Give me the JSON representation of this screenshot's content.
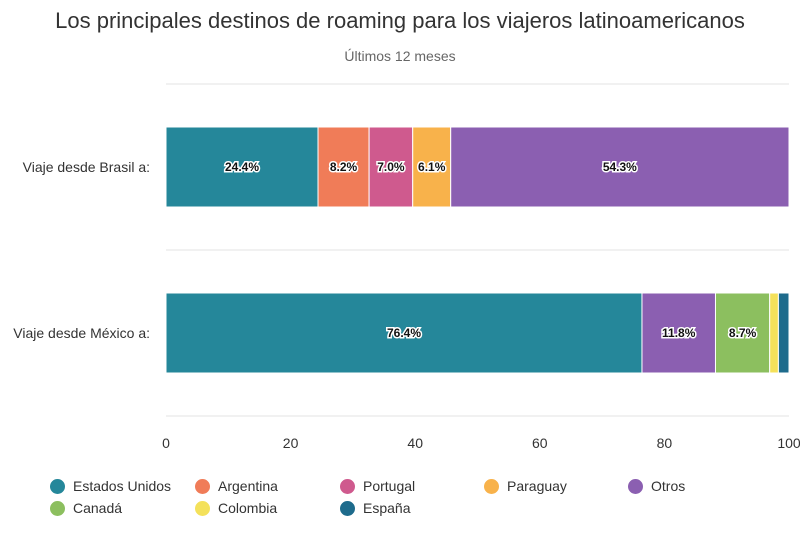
{
  "chart_data": {
    "type": "bar",
    "orientation": "horizontal",
    "stacked": true,
    "title": "Los principales destinos de roaming para los viajeros latinoamericanos",
    "subtitle": "Últimos 12 meses",
    "categories": [
      "Viaje desde Brasil a:",
      "Viaje desde México a:"
    ],
    "xlim": [
      0,
      100
    ],
    "xticks": [
      0,
      20,
      40,
      60,
      80,
      100
    ],
    "grid": true,
    "legend_position": "bottom",
    "series": [
      {
        "name": "Estados Unidos",
        "color": "#25879a",
        "values": [
          24.4,
          76.4
        ],
        "labels": [
          "24.4%",
          "76.4%"
        ]
      },
      {
        "name": "Argentina",
        "color": "#f07c58",
        "values": [
          8.2,
          0
        ],
        "labels": [
          "8.2%",
          ""
        ]
      },
      {
        "name": "Portugal",
        "color": "#cf5a8e",
        "values": [
          7.0,
          0
        ],
        "labels": [
          "7.0%",
          ""
        ]
      },
      {
        "name": "Paraguay",
        "color": "#f8b24b",
        "values": [
          6.1,
          0
        ],
        "labels": [
          "6.1%",
          ""
        ]
      },
      {
        "name": "Otros",
        "color": "#8b5fb1",
        "values": [
          54.3,
          11.8
        ],
        "labels": [
          "54.3%",
          "11.8%"
        ]
      },
      {
        "name": "Canadá",
        "color": "#8cbf5f",
        "values": [
          0,
          8.7
        ],
        "labels": [
          "",
          "8.7%"
        ]
      },
      {
        "name": "Colombia",
        "color": "#f4e15b",
        "values": [
          0,
          1.4
        ],
        "labels": [
          "",
          ""
        ]
      },
      {
        "name": "España",
        "color": "#1e6b8c",
        "values": [
          0,
          1.7
        ],
        "labels": [
          "",
          ""
        ]
      }
    ]
  }
}
